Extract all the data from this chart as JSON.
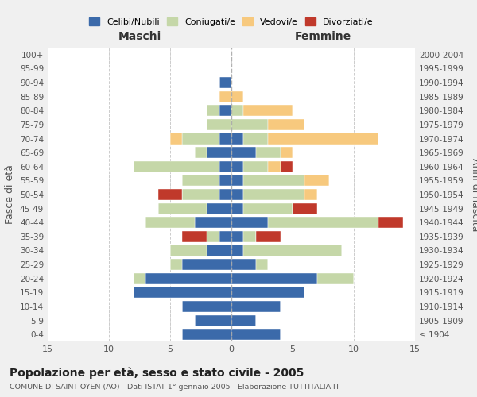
{
  "age_groups": [
    "100+",
    "95-99",
    "90-94",
    "85-89",
    "80-84",
    "75-79",
    "70-74",
    "65-69",
    "60-64",
    "55-59",
    "50-54",
    "45-49",
    "40-44",
    "35-39",
    "30-34",
    "25-29",
    "20-24",
    "15-19",
    "10-14",
    "5-9",
    "0-4"
  ],
  "birth_years": [
    "≤ 1904",
    "1905-1909",
    "1910-1914",
    "1915-1919",
    "1920-1924",
    "1925-1929",
    "1930-1934",
    "1935-1939",
    "1940-1944",
    "1945-1949",
    "1950-1954",
    "1955-1959",
    "1960-1964",
    "1965-1969",
    "1970-1974",
    "1975-1979",
    "1980-1984",
    "1985-1989",
    "1990-1994",
    "1995-1999",
    "2000-2004"
  ],
  "colors": {
    "celibi": "#3b6aaa",
    "coniugati": "#c5d7a8",
    "vedovi": "#f7c97e",
    "divorziati": "#c0392b"
  },
  "maschi": {
    "celibi": [
      0,
      0,
      1,
      0,
      1,
      0,
      1,
      2,
      1,
      1,
      1,
      2,
      3,
      1,
      2,
      4,
      7,
      8,
      4,
      3,
      4
    ],
    "coniugati": [
      0,
      0,
      0,
      0,
      1,
      2,
      3,
      1,
      7,
      3,
      3,
      4,
      4,
      1,
      3,
      1,
      1,
      0,
      0,
      0,
      0
    ],
    "vedovi": [
      0,
      0,
      0,
      1,
      0,
      0,
      1,
      0,
      0,
      0,
      0,
      0,
      0,
      0,
      0,
      0,
      0,
      0,
      0,
      0,
      0
    ],
    "divorziati": [
      0,
      0,
      0,
      0,
      0,
      0,
      0,
      0,
      0,
      0,
      2,
      0,
      0,
      2,
      0,
      0,
      0,
      0,
      0,
      0,
      0
    ]
  },
  "femmine": {
    "celibi": [
      0,
      0,
      0,
      0,
      0,
      0,
      1,
      2,
      1,
      1,
      1,
      1,
      3,
      1,
      1,
      2,
      7,
      6,
      4,
      2,
      4
    ],
    "coniugati": [
      0,
      0,
      0,
      0,
      1,
      3,
      2,
      2,
      2,
      5,
      5,
      4,
      9,
      1,
      8,
      1,
      3,
      0,
      0,
      0,
      0
    ],
    "vedovi": [
      0,
      0,
      0,
      1,
      4,
      3,
      9,
      1,
      1,
      2,
      1,
      0,
      0,
      0,
      0,
      0,
      0,
      0,
      0,
      0,
      0
    ],
    "divorziati": [
      0,
      0,
      0,
      0,
      0,
      0,
      0,
      0,
      1,
      0,
      0,
      2,
      2,
      2,
      0,
      0,
      0,
      0,
      0,
      0,
      0
    ]
  },
  "xlim": 15,
  "title": "Popolazione per età, sesso e stato civile - 2005",
  "subtitle": "COMUNE DI SAINT-OYEN (AO) - Dati ISTAT 1° gennaio 2005 - Elaborazione TUTTITALIA.IT",
  "xlabel_left": "Maschi",
  "xlabel_right": "Femmine",
  "ylabel_left": "Fasce di età",
  "ylabel_right": "Anni di nascita",
  "legend_labels": [
    "Celibi/Nubili",
    "Coniugati/e",
    "Vedovi/e",
    "Divorziati/e"
  ],
  "bg_color": "#f0f0f0",
  "plot_bg_color": "#ffffff"
}
